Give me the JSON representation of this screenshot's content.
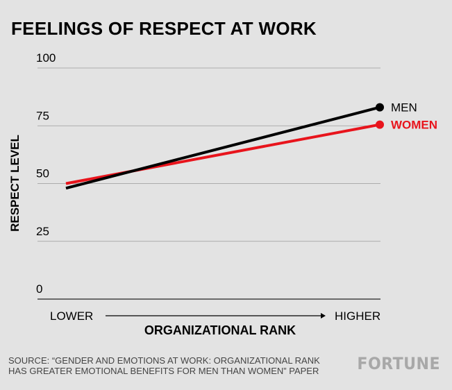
{
  "title": "FEELINGS OF RESPECT AT WORK",
  "chart_data": {
    "type": "line",
    "x": [
      "LOWER",
      "HIGHER"
    ],
    "series": [
      {
        "name": "MEN",
        "values": [
          48,
          83
        ],
        "color": "#000000"
      },
      {
        "name": "WOMEN",
        "values": [
          50,
          75.5
        ],
        "color": "#e8141c"
      }
    ],
    "ylabel": "RESPECT LEVEL",
    "xlabel": "ORGANIZATIONAL RANK",
    "ylim": [
      0,
      100
    ],
    "yticks": [
      "0",
      "25",
      "50",
      "75",
      "100"
    ],
    "x_axis_arrow": true,
    "grid": true,
    "legend": "direct labels at line ends"
  },
  "source": {
    "line1": "SOURCE: “GENDER AND EMOTIONS AT WORK: ORGANIZATIONAL RANK",
    "line2": "HAS GREATER EMOTIONAL BENEFITS FOR MEN THAN WOMEN” PAPER"
  },
  "brand": "FORTUNE"
}
